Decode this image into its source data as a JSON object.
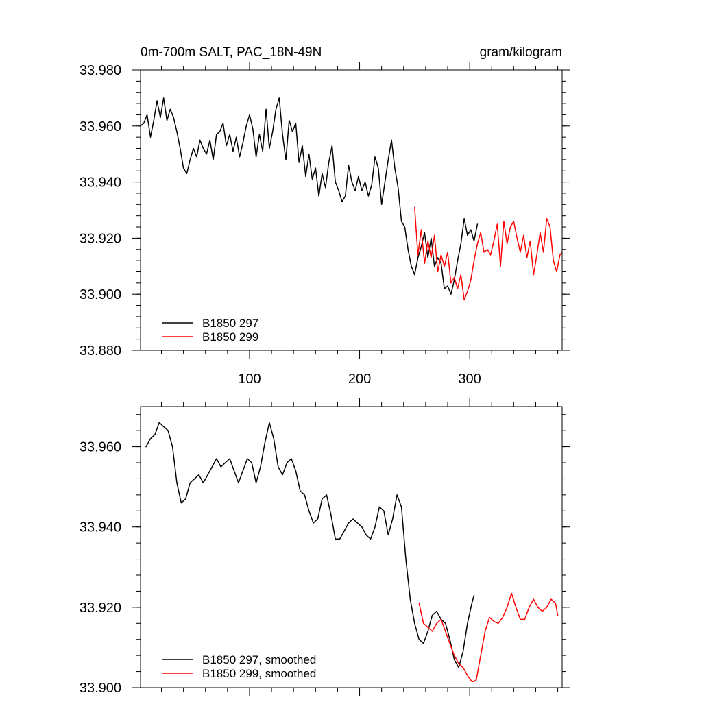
{
  "chart_data": [
    {
      "type": "line",
      "title": "0m-700m SALT, PAC_18N-49N",
      "units": "gram/kilogram",
      "xlim": [
        1,
        384
      ],
      "ylim": [
        33.88,
        33.98
      ],
      "x_ticks": [
        100,
        200,
        300
      ],
      "x_tick_labels": [
        "100",
        "200",
        "300"
      ],
      "y_ticks": [
        33.88,
        33.9,
        33.92,
        33.94,
        33.96,
        33.98
      ],
      "y_tick_labels": [
        "33.880",
        "33.900",
        "33.920",
        "33.940",
        "33.960",
        "33.980"
      ],
      "grid": false,
      "legend": "bottom-left",
      "series": [
        {
          "name": "B1850 297",
          "color": "#000000",
          "x": [
            1,
            4,
            7,
            10,
            13,
            16,
            19,
            22,
            25,
            28,
            31,
            34,
            37,
            40,
            43,
            46,
            49,
            52,
            55,
            58,
            61,
            64,
            67,
            70,
            73,
            76,
            79,
            82,
            85,
            88,
            91,
            94,
            97,
            100,
            103,
            106,
            109,
            112,
            115,
            118,
            121,
            124,
            127,
            130,
            133,
            136,
            139,
            142,
            145,
            148,
            151,
            154,
            157,
            160,
            163,
            166,
            169,
            172,
            175,
            178,
            181,
            184,
            187,
            190,
            193,
            196,
            199,
            202,
            205,
            208,
            211,
            214,
            217,
            220,
            223,
            226,
            229,
            232,
            235,
            238,
            241,
            244,
            247,
            250,
            253,
            256,
            259,
            262,
            265,
            268,
            271,
            274,
            277,
            280,
            283,
            286,
            289,
            292,
            295,
            298,
            301,
            304,
            307
          ],
          "y": [
            33.96,
            33.961,
            33.964,
            33.956,
            33.962,
            33.969,
            33.963,
            33.97,
            33.962,
            33.966,
            33.963,
            33.958,
            33.952,
            33.945,
            33.943,
            33.948,
            33.952,
            33.949,
            33.955,
            33.952,
            33.95,
            33.955,
            33.948,
            33.957,
            33.958,
            33.961,
            33.953,
            33.957,
            33.951,
            33.956,
            33.949,
            33.954,
            33.96,
            33.964,
            33.959,
            33.949,
            33.957,
            33.951,
            33.966,
            33.952,
            33.958,
            33.966,
            33.97,
            33.957,
            33.948,
            33.962,
            33.958,
            33.961,
            33.947,
            33.953,
            33.942,
            33.95,
            33.941,
            33.945,
            33.935,
            33.943,
            33.938,
            33.947,
            33.953,
            33.94,
            33.937,
            33.933,
            33.935,
            33.946,
            33.94,
            33.937,
            33.942,
            33.937,
            33.94,
            33.935,
            33.939,
            33.949,
            33.945,
            33.932,
            33.94,
            33.948,
            33.955,
            33.945,
            33.938,
            33.926,
            33.924,
            33.916,
            33.91,
            33.907,
            33.913,
            33.917,
            33.922,
            33.913,
            33.92,
            33.91,
            33.913,
            33.911,
            33.902,
            33.903,
            33.9,
            33.905,
            33.912,
            33.918,
            33.927,
            33.921,
            33.923,
            33.919,
            33.925
          ]
        },
        {
          "name": "B1850 299",
          "color": "#ff0000",
          "x": [
            250,
            253,
            256,
            259,
            262,
            265,
            268,
            271,
            274,
            277,
            280,
            283,
            286,
            289,
            292,
            295,
            298,
            301,
            304,
            307,
            310,
            313,
            316,
            319,
            322,
            325,
            328,
            331,
            334,
            337,
            340,
            343,
            346,
            349,
            352,
            355,
            358,
            361,
            364,
            367,
            370,
            373,
            376,
            379,
            382,
            384
          ],
          "y": [
            33.931,
            33.914,
            33.923,
            33.911,
            33.919,
            33.913,
            33.921,
            33.908,
            33.914,
            33.91,
            33.915,
            33.904,
            33.906,
            33.902,
            33.907,
            33.898,
            33.901,
            33.905,
            33.912,
            33.918,
            33.922,
            33.915,
            33.916,
            33.914,
            33.919,
            33.925,
            33.91,
            33.926,
            33.918,
            33.924,
            33.926,
            33.92,
            33.915,
            33.921,
            33.913,
            33.919,
            33.907,
            33.914,
            33.922,
            33.915,
            33.927,
            33.924,
            33.912,
            33.908,
            33.914,
            33.915
          ]
        }
      ]
    },
    {
      "type": "line",
      "title": "",
      "xlim": [
        1,
        384
      ],
      "ylim": [
        33.9,
        33.97
      ],
      "x_ticks": [
        100,
        200,
        300
      ],
      "x_tick_labels": [],
      "y_ticks": [
        33.9,
        33.92,
        33.94,
        33.96
      ],
      "y_tick_labels": [
        "33.900",
        "33.920",
        "33.940",
        "33.960"
      ],
      "grid": false,
      "legend": "bottom-left",
      "series": [
        {
          "name": "B1850 297, smoothed",
          "color": "#000000",
          "x": [
            6,
            10,
            14,
            18,
            22,
            26,
            30,
            34,
            38,
            42,
            46,
            50,
            54,
            58,
            62,
            66,
            70,
            74,
            78,
            82,
            86,
            90,
            94,
            98,
            102,
            106,
            110,
            114,
            118,
            122,
            126,
            130,
            134,
            138,
            142,
            146,
            150,
            154,
            158,
            162,
            166,
            170,
            174,
            178,
            182,
            186,
            190,
            194,
            198,
            202,
            206,
            210,
            214,
            218,
            222,
            226,
            230,
            234,
            238,
            242,
            246,
            250,
            254,
            258,
            262,
            266,
            270,
            274,
            278,
            282,
            286,
            290,
            294,
            298,
            302,
            304
          ],
          "y": [
            33.96,
            33.962,
            33.963,
            33.966,
            33.965,
            33.964,
            33.96,
            33.951,
            33.946,
            33.947,
            33.951,
            33.952,
            33.953,
            33.951,
            33.953,
            33.955,
            33.957,
            33.955,
            33.956,
            33.957,
            33.954,
            33.951,
            33.954,
            33.957,
            33.956,
            33.951,
            33.955,
            33.961,
            33.966,
            33.962,
            33.955,
            33.953,
            33.956,
            33.957,
            33.954,
            33.949,
            33.948,
            33.944,
            33.941,
            33.942,
            33.947,
            33.948,
            33.943,
            33.937,
            33.937,
            33.939,
            33.941,
            33.942,
            33.941,
            33.94,
            33.938,
            33.937,
            33.94,
            33.945,
            33.944,
            33.938,
            33.942,
            33.948,
            33.945,
            33.932,
            33.922,
            33.916,
            33.912,
            33.911,
            33.914,
            33.918,
            33.919,
            33.917,
            33.916,
            33.912,
            33.907,
            33.905,
            33.909,
            33.916,
            33.921,
            33.923
          ]
        },
        {
          "name": "B1850 299, smoothed",
          "color": "#ff0000",
          "x": [
            254,
            258,
            262,
            266,
            270,
            274,
            278,
            282,
            286,
            290,
            294,
            298,
            302,
            304,
            306,
            310,
            314,
            318,
            322,
            326,
            330,
            334,
            338,
            342,
            346,
            350,
            354,
            358,
            362,
            366,
            370,
            374,
            378,
            380
          ],
          "y": [
            33.921,
            33.916,
            33.915,
            33.914,
            33.916,
            33.917,
            33.914,
            33.911,
            33.908,
            33.906,
            33.905,
            33.903,
            33.9015,
            33.9015,
            33.902,
            33.908,
            33.914,
            33.9175,
            33.9165,
            33.916,
            33.9175,
            33.92,
            33.9235,
            33.92,
            33.917,
            33.917,
            33.92,
            33.922,
            33.92,
            33.919,
            33.92,
            33.922,
            33.921,
            33.918
          ]
        }
      ]
    }
  ]
}
